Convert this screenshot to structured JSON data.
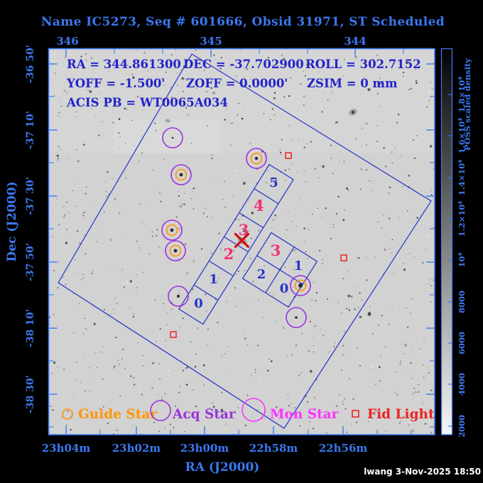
{
  "title": "Name IC5273, Seq # 601666, Obsid 31971, ST Scheduled",
  "overlay": {
    "ra": "RA = 344.861300",
    "dec": "DEC = -37.702900",
    "roll": "ROLL = 302.7152",
    "yoff": "YOFF =  -1.500'",
    "zoff": "ZOFF =  0.0000'",
    "zsim": "ZSIM = 0 mm",
    "acis_pb": "ACIS PB = WT0065A034"
  },
  "axes": {
    "top": {
      "labels": [
        "346",
        "345",
        "344"
      ]
    },
    "bottom": {
      "labels": [
        "23h04m",
        "23h02m",
        "23h00m",
        "22h58m",
        "22h56m"
      ],
      "title": "RA (J2000)"
    },
    "left": {
      "labels": [
        "-36 50'",
        "-37 10'",
        "-37 30'",
        "-37 50'",
        "-38 10'",
        "-38 30'"
      ],
      "title": "Dec (J2000)"
    }
  },
  "chips": {
    "s_labels": [
      "0",
      "1",
      "2",
      "3",
      "4",
      "5"
    ],
    "i_labels": [
      "0",
      "1",
      "2",
      "3"
    ]
  },
  "legend": {
    "guide": "Guide Star",
    "acq": "Acq Star",
    "mon": "Mon Star",
    "fid": "Fid Light"
  },
  "colorbar": {
    "title": "POSS scaled density",
    "ticks": [
      "1.8×10⁴",
      "1.6×10⁴",
      "1.4×10⁴",
      "1.2×10⁴",
      "10⁴",
      "8000",
      "6000",
      "4000",
      "2000"
    ]
  },
  "footer": {
    "credit": "lwang  3-Nov-2025 18:50"
  },
  "colors": {
    "axis_blue": "#3b78f0",
    "overlay_blue": "#2222cc",
    "outline_blue": "#2233cc",
    "chip_magenta": "#ee3377",
    "guide_orange": "#ff9500",
    "acq_purple": "#9933dd",
    "mon_magenta": "#ff33ff",
    "fid_red": "#ee2222",
    "aimpoint_red": "#cc1111",
    "sky_gray": "#d2d2d2",
    "stamp_white": "#ffffff"
  },
  "chart_data": {
    "type": "scatter",
    "title": "Name IC5273, Seq # 601666, Obsid 31971, ST Scheduled",
    "xlabel": "RA (J2000)",
    "ylabel": "Dec (J2000)",
    "x_axis_top_ticks_deg": [
      346,
      345,
      344
    ],
    "x_axis_bottom_ticks": [
      "23h04m",
      "23h02m",
      "23h00m",
      "22h58m",
      "22h56m"
    ],
    "y_axis_ticks": [
      "-36 50'",
      "-37 10'",
      "-37 30'",
      "-37 50'",
      "-38 10'",
      "-38 30'"
    ],
    "x_range_deg": [
      346.13,
      343.34
    ],
    "y_range_deg": [
      -36.76,
      -38.71
    ],
    "aimpoint": {
      "ra_deg": 344.8613,
      "dec_deg": -37.7029,
      "roll_deg": 302.7152,
      "yoff_arcmin": -1.5,
      "zoff_arcmin": 0.0,
      "zsim_mm": 0
    },
    "series": [
      {
        "name": "Guide Star",
        "marker": "orange-circle",
        "points_deg": [
          [
            345.17,
            -37.39
          ],
          [
            344.63,
            -37.31
          ],
          [
            345.24,
            -37.67
          ],
          [
            345.21,
            -37.78
          ],
          [
            344.31,
            -37.95
          ]
        ]
      },
      {
        "name": "Acq Star",
        "marker": "purple-circle",
        "points_deg": [
          [
            345.23,
            -37.21
          ],
          [
            345.19,
            -38.01
          ],
          [
            344.34,
            -38.11
          ],
          [
            345.17,
            -37.39
          ],
          [
            344.63,
            -37.31
          ],
          [
            345.24,
            -37.67
          ],
          [
            345.21,
            -37.78
          ],
          [
            344.31,
            -37.95
          ]
        ]
      },
      {
        "name": "Mon Star",
        "marker": "magenta-circle",
        "points_deg": []
      },
      {
        "name": "Fid Light",
        "marker": "red-square",
        "points_deg": [
          [
            344.4,
            -37.3
          ],
          [
            344.0,
            -37.81
          ],
          [
            345.23,
            -38.2
          ]
        ]
      }
    ],
    "legend_position": "bottom",
    "colorbar": {
      "label": "POSS scaled density",
      "range": [
        2000,
        18000
      ]
    }
  }
}
